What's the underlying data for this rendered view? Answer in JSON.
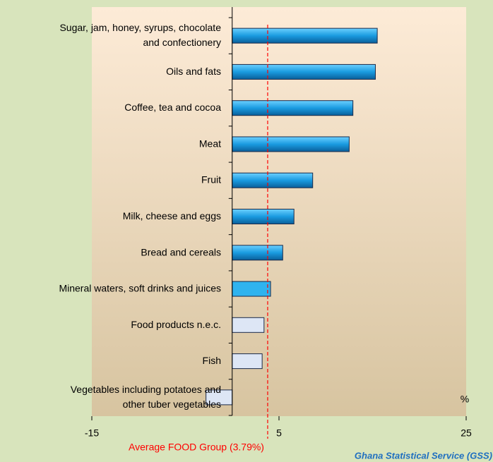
{
  "chart_data": {
    "type": "barh",
    "categories": [
      [
        "Sugar, jam, honey, syrups, chocolate",
        "and confectionery"
      ],
      [
        "Oils and fats"
      ],
      [
        "Coffee, tea and cocoa"
      ],
      [
        "Meat"
      ],
      [
        "Fruit"
      ],
      [
        "Milk, cheese and eggs"
      ],
      [
        "Bread and cereals"
      ],
      [
        "Mineral waters, soft drinks and juices"
      ],
      [
        "Food products n.e.c."
      ],
      [
        "Fish"
      ],
      [
        "Vegetables including potatoes and",
        "other tuber vegetables"
      ]
    ],
    "values": [
      15.5,
      15.3,
      12.9,
      12.5,
      8.6,
      6.6,
      5.4,
      4.1,
      3.4,
      3.2,
      -2.8
    ],
    "colors": [
      "#1a9be0",
      "#1a9be0",
      "#1a9be0",
      "#1a9be0",
      "#1a9be0",
      "#1a9be0",
      "#1a9be0",
      "#2fb3ef",
      "#dde6f5",
      "#dde6f5",
      "#dde6f5"
    ],
    "xlim": [
      -15,
      25
    ],
    "xticks": [
      -15,
      5,
      25
    ],
    "xlabel": "%",
    "reference_line": {
      "value": 3.79,
      "label": "Average FOOD Group (3.79%)",
      "color": "#ff0000"
    },
    "source": "Ghana Statistical Service (GSS)"
  }
}
